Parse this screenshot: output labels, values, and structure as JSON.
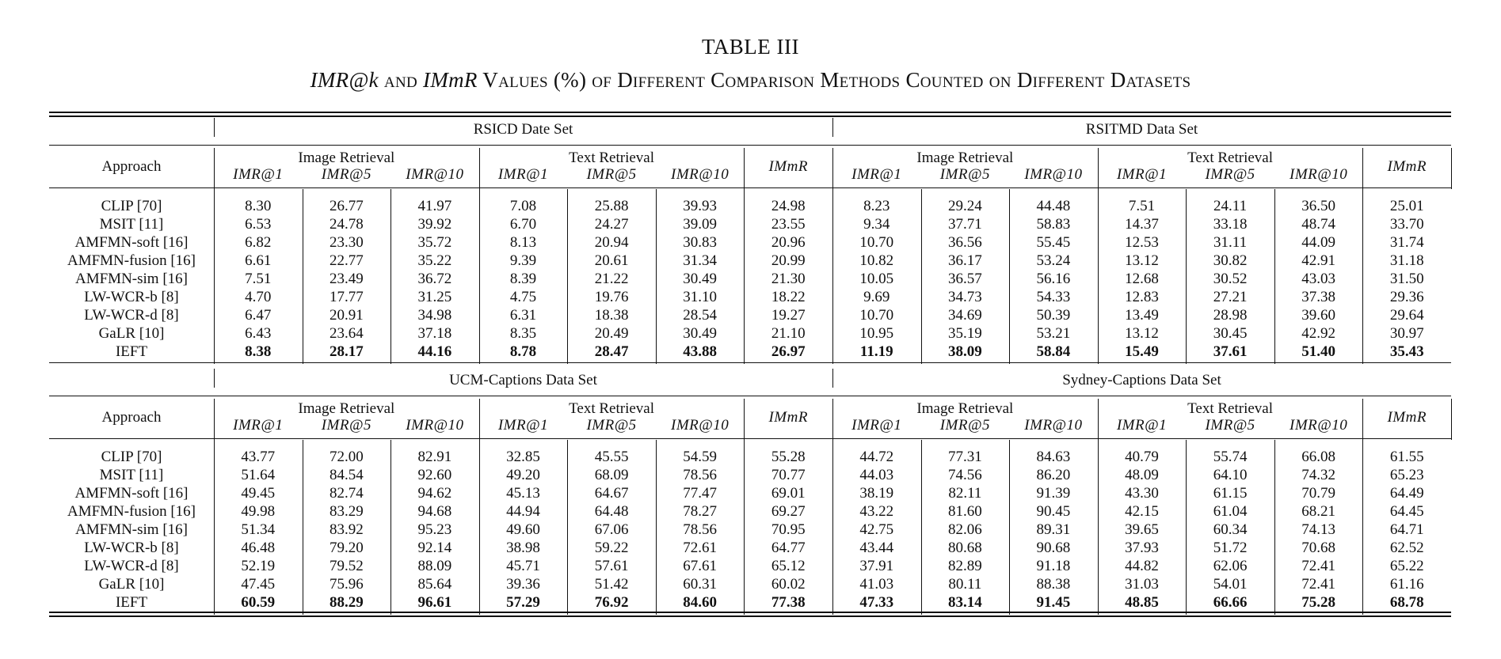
{
  "caption": {
    "number": "TABLE III",
    "title_pre": "IMR@k",
    "title_and": " and ",
    "title_mid": "IMmR",
    "title_post": " Values (%) of Different Comparison Methods Counted on Different Datasets"
  },
  "columns": {
    "approach": "Approach",
    "image_retrieval": "Image Retrieval",
    "text_retrieval": "Text Retrieval",
    "metrics": [
      "IMR@1",
      "IMR@5",
      "IMR@10",
      "IMR@1",
      "IMR@5",
      "IMR@10",
      "IMmR"
    ]
  },
  "blocks": [
    {
      "datasets": [
        "RSICD Date Set",
        "RSITMD Data Set"
      ],
      "rows": [
        {
          "approach": "CLIP [70]",
          "left": [
            "8.30",
            "26.77",
            "41.97",
            "7.08",
            "25.88",
            "39.93",
            "24.98"
          ],
          "right": [
            "8.23",
            "29.24",
            "44.48",
            "7.51",
            "24.11",
            "36.50",
            "25.01"
          ]
        },
        {
          "approach": "MSIT [11]",
          "left": [
            "6.53",
            "24.78",
            "39.92",
            "6.70",
            "24.27",
            "39.09",
            "23.55"
          ],
          "right": [
            "9.34",
            "37.71",
            "58.83",
            "14.37",
            "33.18",
            "48.74",
            "33.70"
          ]
        },
        {
          "approach": "AMFMN-soft [16]",
          "left": [
            "6.82",
            "23.30",
            "35.72",
            "8.13",
            "20.94",
            "30.83",
            "20.96"
          ],
          "right": [
            "10.70",
            "36.56",
            "55.45",
            "12.53",
            "31.11",
            "44.09",
            "31.74"
          ]
        },
        {
          "approach": "AMFMN-fusion [16]",
          "left": [
            "6.61",
            "22.77",
            "35.22",
            "9.39",
            "20.61",
            "31.34",
            "20.99"
          ],
          "right": [
            "10.82",
            "36.17",
            "53.24",
            "13.12",
            "30.82",
            "42.91",
            "31.18"
          ]
        },
        {
          "approach": "AMFMN-sim [16]",
          "left": [
            "7.51",
            "23.49",
            "36.72",
            "8.39",
            "21.22",
            "30.49",
            "21.30"
          ],
          "right": [
            "10.05",
            "36.57",
            "56.16",
            "12.68",
            "30.52",
            "43.03",
            "31.50"
          ]
        },
        {
          "approach": "LW-WCR-b [8]",
          "left": [
            "4.70",
            "17.77",
            "31.25",
            "4.75",
            "19.76",
            "31.10",
            "18.22"
          ],
          "right": [
            "9.69",
            "34.73",
            "54.33",
            "12.83",
            "27.21",
            "37.38",
            "29.36"
          ]
        },
        {
          "approach": "LW-WCR-d [8]",
          "left": [
            "6.47",
            "20.91",
            "34.98",
            "6.31",
            "18.38",
            "28.54",
            "19.27"
          ],
          "right": [
            "10.70",
            "34.69",
            "50.39",
            "13.49",
            "28.98",
            "39.60",
            "29.64"
          ]
        },
        {
          "approach": "GaLR [10]",
          "left": [
            "6.43",
            "23.64",
            "37.18",
            "8.35",
            "20.49",
            "30.49",
            "21.10"
          ],
          "right": [
            "10.95",
            "35.19",
            "53.21",
            "13.12",
            "30.45",
            "42.92",
            "30.97"
          ]
        },
        {
          "approach": "IEFT",
          "left": [
            "8.38",
            "28.17",
            "44.16",
            "8.78",
            "28.47",
            "43.88",
            "26.97"
          ],
          "right": [
            "11.19",
            "38.09",
            "58.84",
            "15.49",
            "37.61",
            "51.40",
            "35.43"
          ],
          "bold": true
        }
      ]
    },
    {
      "datasets": [
        "UCM-Captions Data Set",
        "Sydney-Captions Data Set"
      ],
      "rows": [
        {
          "approach": "CLIP [70]",
          "left": [
            "43.77",
            "72.00",
            "82.91",
            "32.85",
            "45.55",
            "54.59",
            "55.28"
          ],
          "right": [
            "44.72",
            "77.31",
            "84.63",
            "40.79",
            "55.74",
            "66.08",
            "61.55"
          ]
        },
        {
          "approach": "MSIT [11]",
          "left": [
            "51.64",
            "84.54",
            "92.60",
            "49.20",
            "68.09",
            "78.56",
            "70.77"
          ],
          "right": [
            "44.03",
            "74.56",
            "86.20",
            "48.09",
            "64.10",
            "74.32",
            "65.23"
          ]
        },
        {
          "approach": "AMFMN-soft [16]",
          "left": [
            "49.45",
            "82.74",
            "94.62",
            "45.13",
            "64.67",
            "77.47",
            "69.01"
          ],
          "right": [
            "38.19",
            "82.11",
            "91.39",
            "43.30",
            "61.15",
            "70.79",
            "64.49"
          ]
        },
        {
          "approach": "AMFMN-fusion [16]",
          "left": [
            "49.98",
            "83.29",
            "94.68",
            "44.94",
            "64.48",
            "78.27",
            "69.27"
          ],
          "right": [
            "43.22",
            "81.60",
            "90.45",
            "42.15",
            "61.04",
            "68.21",
            "64.45"
          ]
        },
        {
          "approach": "AMFMN-sim [16]",
          "left": [
            "51.34",
            "83.92",
            "95.23",
            "49.60",
            "67.06",
            "78.56",
            "70.95"
          ],
          "right": [
            "42.75",
            "82.06",
            "89.31",
            "39.65",
            "60.34",
            "74.13",
            "64.71"
          ]
        },
        {
          "approach": "LW-WCR-b [8]",
          "left": [
            "46.48",
            "79.20",
            "92.14",
            "38.98",
            "59.22",
            "72.61",
            "64.77"
          ],
          "right": [
            "43.44",
            "80.68",
            "90.68",
            "37.93",
            "51.72",
            "70.68",
            "62.52"
          ]
        },
        {
          "approach": "LW-WCR-d [8]",
          "left": [
            "52.19",
            "79.52",
            "88.09",
            "45.71",
            "57.61",
            "67.61",
            "65.12"
          ],
          "right": [
            "37.91",
            "82.89",
            "91.18",
            "44.82",
            "62.06",
            "72.41",
            "65.22"
          ]
        },
        {
          "approach": "GaLR [10]",
          "left": [
            "47.45",
            "75.96",
            "85.64",
            "39.36",
            "51.42",
            "60.31",
            "60.02"
          ],
          "right": [
            "41.03",
            "80.11",
            "88.38",
            "31.03",
            "54.01",
            "72.41",
            "61.16"
          ]
        },
        {
          "approach": "IEFT",
          "left": [
            "60.59",
            "88.29",
            "96.61",
            "57.29",
            "76.92",
            "84.60",
            "77.38"
          ],
          "right": [
            "47.33",
            "83.14",
            "91.45",
            "48.85",
            "66.66",
            "75.28",
            "68.78"
          ],
          "bold": true
        }
      ]
    }
  ]
}
